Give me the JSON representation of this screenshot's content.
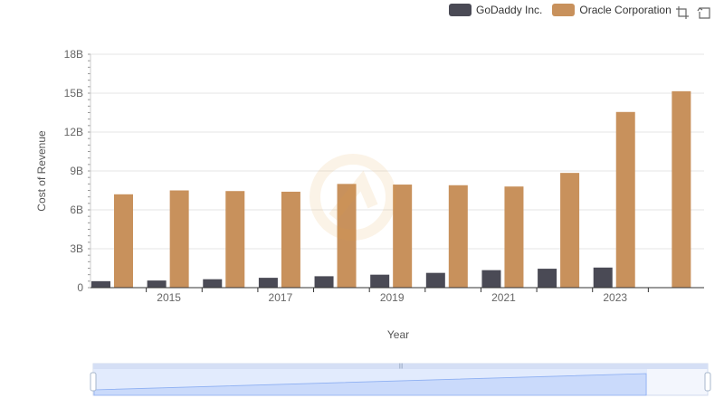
{
  "legend": {
    "items": [
      {
        "label": "GoDaddy Inc.",
        "color": "#4a4a55"
      },
      {
        "label": "Oracle Corporation",
        "color": "#c8915c"
      }
    ]
  },
  "toolbox": {
    "icons": [
      "zoom-icon",
      "restore-icon"
    ]
  },
  "colors": {
    "godaddy": "#4a4a55",
    "oracle": "#c8915c",
    "grid": "#e6e6e6",
    "axis": "#333333",
    "datazoom_fill": "#d6e2fb"
  },
  "chart_data": {
    "type": "bar",
    "x": [
      2014,
      2015,
      2016,
      2017,
      2018,
      2019,
      2020,
      2021,
      2022,
      2023,
      2024
    ],
    "x_tick_labels": [
      "2015",
      "2017",
      "2019",
      "2021",
      "2023"
    ],
    "y_tick_labels": [
      "0",
      "3B",
      "6B",
      "9B",
      "12B",
      "15B",
      "18B"
    ],
    "ylim": [
      0,
      18000000000
    ],
    "xlabel": "Year",
    "ylabel": "Cost of Revenue",
    "grid": true,
    "legend_position": "top-right",
    "series": [
      {
        "name": "GoDaddy Inc.",
        "values": [
          500000000,
          550000000,
          650000000,
          760000000,
          880000000,
          1000000000,
          1140000000,
          1350000000,
          1460000000,
          1550000000,
          null
        ]
      },
      {
        "name": "Oracle Corporation",
        "values": [
          7200000000,
          7500000000,
          7450000000,
          7400000000,
          8000000000,
          7950000000,
          7900000000,
          7800000000,
          8850000000,
          13550000000,
          15150000000
        ]
      }
    ]
  }
}
